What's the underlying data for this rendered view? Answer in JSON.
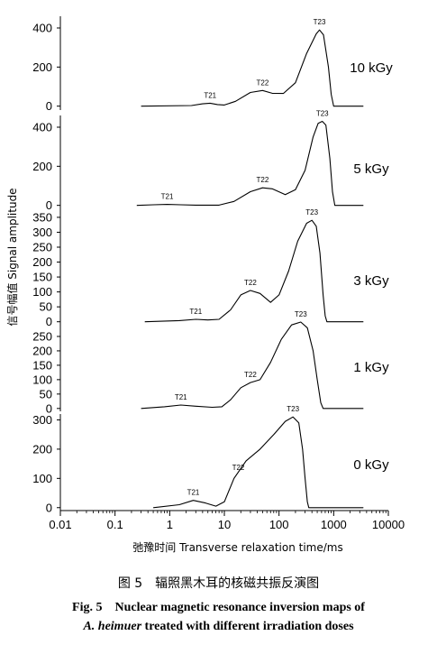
{
  "chart_data": {
    "type": "line",
    "x_scale": "log",
    "xlim": [
      0.01,
      10000
    ],
    "x_tick_labels": [
      "0.01",
      "0.1",
      "1",
      "10",
      "100",
      "1000",
      "10000"
    ],
    "x_ticks": [
      0.01,
      0.1,
      1,
      10,
      100,
      1000,
      10000
    ],
    "xlabel": "弛豫时间 Transverse relaxation time/ms",
    "ylabel": "信号幅值 Signal amplitude",
    "grid": false,
    "panels": [
      {
        "name": "10 kGy",
        "ylim": [
          -20,
          460
        ],
        "y_ticks": [
          0,
          200,
          400
        ],
        "y_tick_labels": [
          "0",
          "200",
          "400"
        ],
        "peaks": [
          {
            "label": "T21",
            "x": 5.5,
            "y": 15
          },
          {
            "label": "T22",
            "x": 50,
            "y": 80
          },
          {
            "label": "T23",
            "x": 550,
            "y": 390
          }
        ],
        "points": [
          [
            0.3,
            0
          ],
          [
            2.5,
            3
          ],
          [
            4,
            12
          ],
          [
            5.5,
            15
          ],
          [
            7.5,
            8
          ],
          [
            10,
            6
          ],
          [
            16,
            25
          ],
          [
            30,
            70
          ],
          [
            50,
            80
          ],
          [
            75,
            66
          ],
          [
            120,
            65
          ],
          [
            200,
            120
          ],
          [
            320,
            270
          ],
          [
            480,
            370
          ],
          [
            550,
            390
          ],
          [
            650,
            365
          ],
          [
            800,
            200
          ],
          [
            900,
            60
          ],
          [
            1000,
            0
          ],
          [
            3500,
            0
          ]
        ]
      },
      {
        "name": "5 kGy",
        "ylim": [
          -20,
          460
        ],
        "y_ticks": [
          0,
          200,
          400
        ],
        "y_tick_labels": [
          "0",
          "200",
          "400"
        ],
        "peaks": [
          {
            "label": "T21",
            "x": 0.9,
            "y": 5
          },
          {
            "label": "T22",
            "x": 50,
            "y": 90
          },
          {
            "label": "T23",
            "x": 620,
            "y": 430
          }
        ],
        "points": [
          [
            0.25,
            0
          ],
          [
            0.5,
            3
          ],
          [
            0.9,
            5
          ],
          [
            1.6,
            3
          ],
          [
            3,
            1
          ],
          [
            8,
            1
          ],
          [
            15,
            20
          ],
          [
            30,
            70
          ],
          [
            50,
            90
          ],
          [
            75,
            85
          ],
          [
            130,
            55
          ],
          [
            200,
            80
          ],
          [
            300,
            180
          ],
          [
            420,
            350
          ],
          [
            520,
            420
          ],
          [
            620,
            430
          ],
          [
            720,
            410
          ],
          [
            850,
            240
          ],
          [
            950,
            70
          ],
          [
            1050,
            0
          ],
          [
            3500,
            0
          ]
        ]
      },
      {
        "name": "3 kGy",
        "ylim": [
          -10,
          380
        ],
        "y_ticks": [
          0,
          50,
          100,
          150,
          200,
          250,
          300,
          350
        ],
        "y_tick_labels": [
          "0",
          "50",
          "100",
          "150",
          "200",
          "250",
          "300",
          "350"
        ],
        "peaks": [
          {
            "label": "T21",
            "x": 3,
            "y": 8
          },
          {
            "label": "T22",
            "x": 30,
            "y": 105
          },
          {
            "label": "T23",
            "x": 400,
            "y": 340
          }
        ],
        "points": [
          [
            0.35,
            0
          ],
          [
            1.5,
            4
          ],
          [
            3,
            8
          ],
          [
            5,
            6
          ],
          [
            8,
            8
          ],
          [
            13,
            40
          ],
          [
            20,
            90
          ],
          [
            30,
            105
          ],
          [
            45,
            95
          ],
          [
            70,
            65
          ],
          [
            100,
            90
          ],
          [
            150,
            170
          ],
          [
            220,
            270
          ],
          [
            320,
            330
          ],
          [
            400,
            340
          ],
          [
            480,
            320
          ],
          [
            560,
            230
          ],
          [
            640,
            90
          ],
          [
            700,
            20
          ],
          [
            750,
            0
          ],
          [
            3500,
            0
          ]
        ]
      },
      {
        "name": "1 kGy",
        "ylim": [
          -10,
          300
        ],
        "y_ticks": [
          0,
          50,
          100,
          150,
          200,
          250
        ],
        "y_tick_labels": [
          "0",
          "50",
          "100",
          "150",
          "200",
          "250"
        ],
        "peaks": [
          {
            "label": "T21",
            "x": 1.6,
            "y": 12
          },
          {
            "label": "T22",
            "x": 30,
            "y": 90
          },
          {
            "label": "T23",
            "x": 250,
            "y": 300
          }
        ],
        "points": [
          [
            0.3,
            0
          ],
          [
            0.8,
            6
          ],
          [
            1.6,
            12
          ],
          [
            3,
            8
          ],
          [
            6,
            4
          ],
          [
            9,
            6
          ],
          [
            13,
            30
          ],
          [
            20,
            72
          ],
          [
            30,
            90
          ],
          [
            45,
            100
          ],
          [
            70,
            160
          ],
          [
            110,
            240
          ],
          [
            170,
            290
          ],
          [
            250,
            300
          ],
          [
            330,
            280
          ],
          [
            420,
            200
          ],
          [
            500,
            100
          ],
          [
            580,
            20
          ],
          [
            640,
            0
          ],
          [
            3500,
            0
          ]
        ]
      },
      {
        "name": "0 kGy",
        "ylim": [
          -10,
          320
        ],
        "y_ticks": [
          0,
          100,
          200,
          300
        ],
        "y_tick_labels": [
          "0",
          "100",
          "200",
          "300"
        ],
        "peaks": [
          {
            "label": "T21",
            "x": 2.7,
            "y": 25
          },
          {
            "label": "T22",
            "x": 18,
            "y": 110
          },
          {
            "label": "T23",
            "x": 180,
            "y": 310
          }
        ],
        "points": [
          [
            0.5,
            0
          ],
          [
            1.5,
            10
          ],
          [
            2.7,
            25
          ],
          [
            4.5,
            16
          ],
          [
            7,
            5
          ],
          [
            10,
            20
          ],
          [
            15,
            100
          ],
          [
            25,
            160
          ],
          [
            45,
            200
          ],
          [
            80,
            250
          ],
          [
            130,
            295
          ],
          [
            180,
            310
          ],
          [
            230,
            290
          ],
          [
            270,
            200
          ],
          [
            300,
            100
          ],
          [
            330,
            20
          ],
          [
            350,
            0
          ],
          [
            3500,
            0
          ]
        ]
      }
    ]
  },
  "caption": {
    "chinese": "图 5　辐照黑木耳的核磁共振反演图",
    "english_line1": "Fig. 5　Nuclear magnetic resonance inversion maps of",
    "english_line2_species": "A. heimuer",
    "english_line2_rest": " treated with different irradiation doses"
  }
}
